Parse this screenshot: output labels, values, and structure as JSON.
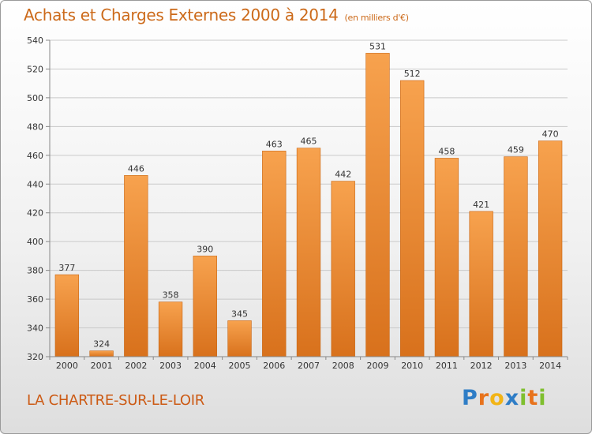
{
  "header": {
    "title": "Achats et Charges Externes 2000 à 2014",
    "unit": "(en milliers d'€)"
  },
  "footer": {
    "commune": "LA CHARTRE-SUR-LE-LOIR",
    "logo_letters": [
      "P",
      "r",
      "o",
      "x",
      "i",
      "t",
      "i"
    ],
    "logo_colors": [
      "#2e7dc6",
      "#e8731c",
      "#f2b416",
      "#2e7dc6",
      "#7fbf2f",
      "#e8731c",
      "#7fbf2f"
    ]
  },
  "chart_data": {
    "type": "bar",
    "title": "Achats et Charges Externes 2000 à 2014",
    "subtitle": "(en milliers d'€)",
    "categories": [
      "2000",
      "2001",
      "2002",
      "2003",
      "2004",
      "2005",
      "2006",
      "2007",
      "2008",
      "2009",
      "2010",
      "2011",
      "2012",
      "2013",
      "2014"
    ],
    "values": [
      377,
      324,
      446,
      358,
      390,
      345,
      463,
      465,
      442,
      531,
      512,
      458,
      421,
      459,
      470
    ],
    "ylim": [
      320,
      540
    ],
    "yticks": [
      320,
      340,
      360,
      380,
      400,
      420,
      440,
      460,
      480,
      500,
      520,
      540
    ],
    "grid": true,
    "bar_color_top": "#f7a24e",
    "bar_color_bottom": "#d8711c"
  }
}
